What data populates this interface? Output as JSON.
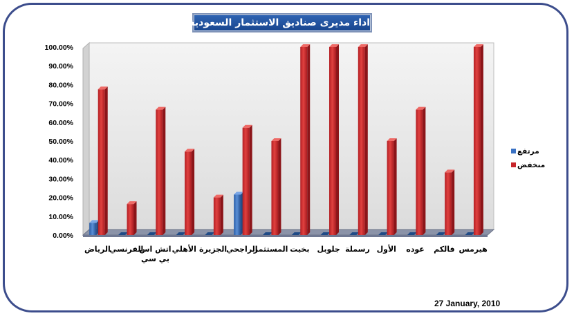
{
  "title": "اداء مديرى صناديق الاستثمار السعودية",
  "date": "27 January, 2010",
  "chart_data": {
    "type": "bar",
    "title": "اداء مديرى صناديق الاستثمار السعودية",
    "categories": [
      "الرياض",
      "الفرنسي",
      "اتش اس بي سي",
      "الأهلي",
      "الجزيرة",
      "الراجحي",
      "المستثمر",
      "بخيت",
      "جلوبل",
      "رسملة",
      "الأول",
      "عوده",
      "فالكم",
      "هيرمس"
    ],
    "series": [
      {
        "name": "مرتفع",
        "color": "#3a72c4",
        "values": [
          6.5,
          0,
          0,
          0,
          0,
          21.5,
          0,
          0,
          0,
          0,
          0,
          0,
          0,
          0
        ]
      },
      {
        "name": "منخفض",
        "color": "#c7262b",
        "values": [
          77.5,
          16.5,
          66.7,
          44.4,
          20,
          57.1,
          50,
          100,
          100,
          100,
          50,
          66.7,
          33.3,
          100
        ]
      }
    ],
    "ylim": [
      0,
      100
    ],
    "yticks": [
      "0.00%",
      "10.00%",
      "20.00%",
      "30.00%",
      "40.00%",
      "50.00%",
      "60.00%",
      "70.00%",
      "80.00%",
      "90.00%",
      "100.00%"
    ],
    "legend_position": "right",
    "grid": false
  }
}
